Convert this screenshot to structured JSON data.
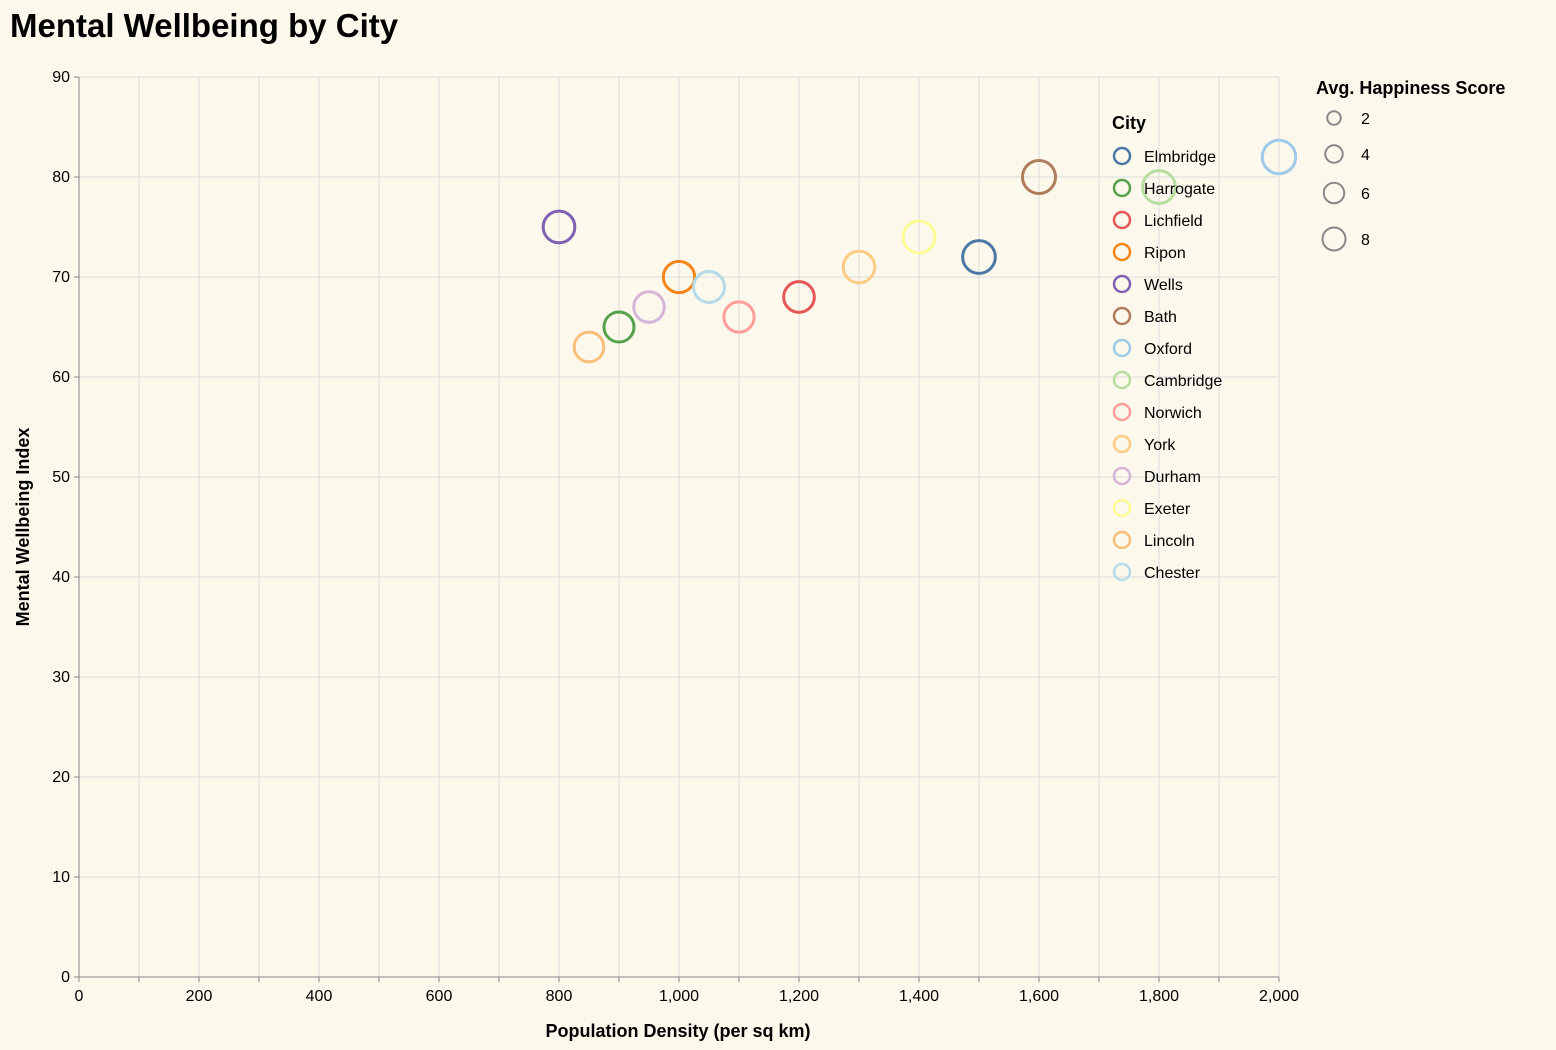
{
  "chart_data": {
    "type": "scatter",
    "title": "Mental Wellbeing by City",
    "xlabel": "Population Density (per sq km)",
    "ylabel": "Mental Wellbeing Index",
    "xlim": [
      0,
      2000
    ],
    "ylim": [
      0,
      90
    ],
    "x_ticks": [
      "0",
      "200",
      "400",
      "600",
      "800",
      "1,000",
      "1,200",
      "1,400",
      "1,600",
      "1,800",
      "2,000"
    ],
    "y_ticks": [
      "0",
      "10",
      "20",
      "30",
      "40",
      "50",
      "60",
      "70",
      "80",
      "90"
    ],
    "grid": true,
    "color_legend_title": "City",
    "size_legend_title": "Avg. Happiness Score",
    "size_legend_values": [
      2,
      4,
      6,
      8
    ],
    "legend_position": "right",
    "points": [
      {
        "city": "Elmbridge",
        "x": 1500,
        "y": 72,
        "happiness": 8.5,
        "color": "#4c78a8"
      },
      {
        "city": "Harrogate",
        "x": 900,
        "y": 65,
        "happiness": 7.2,
        "color": "#54a24b"
      },
      {
        "city": "Lichfield",
        "x": 1200,
        "y": 68,
        "happiness": 7.5,
        "color": "#e45756"
      },
      {
        "city": "Ripon",
        "x": 1000,
        "y": 70,
        "happiness": 7.8,
        "color": "#f58518"
      },
      {
        "city": "Wells",
        "x": 800,
        "y": 75,
        "happiness": 8.0,
        "color": "#8161b2"
      },
      {
        "city": "Bath",
        "x": 1600,
        "y": 80,
        "happiness": 8.7,
        "color": "#b07d5c"
      },
      {
        "city": "Oxford",
        "x": 2000,
        "y": 82,
        "happiness": 8.9,
        "color": "#9ecae9"
      },
      {
        "city": "Cambridge",
        "x": 1800,
        "y": 79,
        "happiness": 8.6,
        "color": "#b8de9f"
      },
      {
        "city": "Norwich",
        "x": 1100,
        "y": 66,
        "happiness": 7.3,
        "color": "#ff9d98"
      },
      {
        "city": "York",
        "x": 1300,
        "y": 71,
        "happiness": 7.9,
        "color": "#fecb85"
      },
      {
        "city": "Durham",
        "x": 950,
        "y": 67,
        "happiness": 7.4,
        "color": "#d6b5d8"
      },
      {
        "city": "Exeter",
        "x": 1400,
        "y": 74,
        "happiness": 8.1,
        "color": "#fdfb94"
      },
      {
        "city": "Lincoln",
        "x": 850,
        "y": 63,
        "happiness": 7.0,
        "color": "#f9be7a"
      },
      {
        "city": "Chester",
        "x": 1050,
        "y": 69,
        "happiness": 7.6,
        "color": "#b5dbe8"
      }
    ]
  }
}
